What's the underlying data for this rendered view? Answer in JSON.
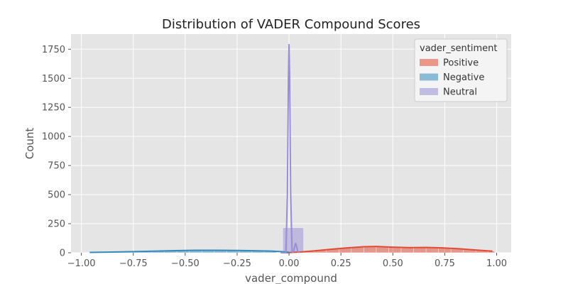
{
  "chart_data": {
    "type": "histogram",
    "title": "Distribution of VADER Compound Scores",
    "xlabel": "vader_compound",
    "ylabel": "Count",
    "xlim": [
      -1.05,
      1.07
    ],
    "ylim": [
      0,
      1880
    ],
    "xticks": [
      -1.0,
      -0.75,
      -0.5,
      -0.25,
      0.0,
      0.25,
      0.5,
      0.75,
      1.0
    ],
    "xtick_labels": [
      "−1.00",
      "−0.75",
      "−0.50",
      "−0.25",
      "0.00",
      "0.25",
      "0.50",
      "0.75",
      "1.00"
    ],
    "yticks": [
      0,
      250,
      500,
      750,
      1000,
      1250,
      1500,
      1750
    ],
    "ytick_labels": [
      "0",
      "250",
      "500",
      "750",
      "1000",
      "1250",
      "1500",
      "1750"
    ],
    "grid": true,
    "background": "#e5e5e5",
    "legend": {
      "title": "vader_sentiment",
      "placement": "top-right",
      "entries": [
        "Positive",
        "Negative",
        "Neutral"
      ]
    },
    "series": [
      {
        "name": "Positive",
        "color": "#e24a33",
        "bins": [
          {
            "x0": 0.06,
            "x1": 0.12,
            "count": 12
          },
          {
            "x0": 0.12,
            "x1": 0.18,
            "count": 22
          },
          {
            "x0": 0.18,
            "x1": 0.24,
            "count": 32
          },
          {
            "x0": 0.24,
            "x1": 0.3,
            "count": 40
          },
          {
            "x0": 0.3,
            "x1": 0.36,
            "count": 50
          },
          {
            "x0": 0.36,
            "x1": 0.42,
            "count": 56
          },
          {
            "x0": 0.42,
            "x1": 0.48,
            "count": 52
          },
          {
            "x0": 0.48,
            "x1": 0.54,
            "count": 46
          },
          {
            "x0": 0.54,
            "x1": 0.6,
            "count": 42
          },
          {
            "x0": 0.6,
            "x1": 0.66,
            "count": 44
          },
          {
            "x0": 0.66,
            "x1": 0.72,
            "count": 45
          },
          {
            "x0": 0.72,
            "x1": 0.78,
            "count": 40
          },
          {
            "x0": 0.78,
            "x1": 0.84,
            "count": 32
          },
          {
            "x0": 0.84,
            "x1": 0.9,
            "count": 26
          },
          {
            "x0": 0.9,
            "x1": 0.96,
            "count": 20
          },
          {
            "x0": 0.96,
            "x1": 0.99,
            "count": 14
          }
        ],
        "kde": [
          [
            -0.02,
            0
          ],
          [
            0.05,
            6
          ],
          [
            0.12,
            16
          ],
          [
            0.2,
            30
          ],
          [
            0.28,
            42
          ],
          [
            0.36,
            52
          ],
          [
            0.42,
            54
          ],
          [
            0.5,
            48
          ],
          [
            0.58,
            44
          ],
          [
            0.66,
            46
          ],
          [
            0.74,
            42
          ],
          [
            0.82,
            34
          ],
          [
            0.9,
            24
          ],
          [
            0.98,
            14
          ]
        ]
      },
      {
        "name": "Negative",
        "color": "#348abd",
        "bins": [
          {
            "x0": -0.96,
            "x1": -0.9,
            "count": 2
          },
          {
            "x0": -0.9,
            "x1": -0.84,
            "count": 4
          },
          {
            "x0": -0.84,
            "x1": -0.78,
            "count": 7
          },
          {
            "x0": -0.78,
            "x1": -0.72,
            "count": 10
          },
          {
            "x0": -0.72,
            "x1": -0.66,
            "count": 12
          },
          {
            "x0": -0.66,
            "x1": -0.6,
            "count": 14
          },
          {
            "x0": -0.6,
            "x1": -0.54,
            "count": 16
          },
          {
            "x0": -0.54,
            "x1": -0.48,
            "count": 19
          },
          {
            "x0": -0.48,
            "x1": -0.42,
            "count": 21
          },
          {
            "x0": -0.42,
            "x1": -0.36,
            "count": 21
          },
          {
            "x0": -0.36,
            "x1": -0.3,
            "count": 20
          },
          {
            "x0": -0.3,
            "x1": -0.24,
            "count": 19
          },
          {
            "x0": -0.24,
            "x1": -0.18,
            "count": 18
          },
          {
            "x0": -0.18,
            "x1": -0.12,
            "count": 16
          },
          {
            "x0": -0.12,
            "x1": -0.06,
            "count": 13
          }
        ],
        "kde": [
          [
            -0.96,
            3
          ],
          [
            -0.85,
            6
          ],
          [
            -0.75,
            10
          ],
          [
            -0.65,
            14
          ],
          [
            -0.55,
            18
          ],
          [
            -0.45,
            21
          ],
          [
            -0.35,
            21
          ],
          [
            -0.25,
            20
          ],
          [
            -0.15,
            17
          ],
          [
            -0.08,
            14
          ],
          [
            -0.04,
            10
          ],
          [
            0.0,
            4
          ]
        ]
      },
      {
        "name": "Neutral",
        "color": "#988ed5",
        "bins": [
          {
            "x0": -0.03,
            "x1": 0.07,
            "count": 215
          }
        ],
        "kde": [
          [
            -0.04,
            0
          ],
          [
            -0.015,
            0
          ],
          [
            -0.008,
            500
          ],
          [
            -0.003,
            1500
          ],
          [
            0.0,
            1790
          ],
          [
            0.003,
            1500
          ],
          [
            0.008,
            500
          ],
          [
            0.015,
            0
          ],
          [
            0.022,
            10
          ],
          [
            0.028,
            60
          ],
          [
            0.032,
            80
          ],
          [
            0.036,
            60
          ],
          [
            0.042,
            10
          ],
          [
            0.05,
            0
          ]
        ]
      }
    ]
  }
}
